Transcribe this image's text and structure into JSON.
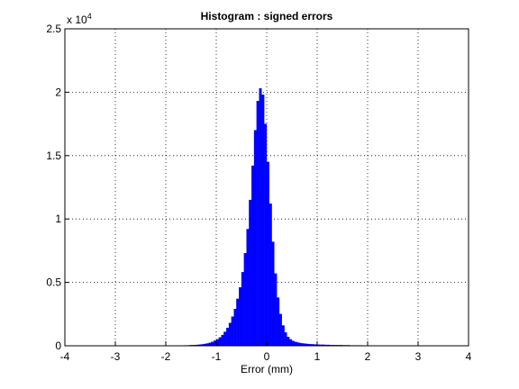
{
  "chart_data": {
    "type": "histogram",
    "title": "Histogram : signed errors",
    "x_label": "Error (mm)",
    "y_multiplier": {
      "base": "x 10",
      "exponent": "4"
    },
    "color": "#0000ff",
    "grid": true,
    "xlim": [
      -4,
      4
    ],
    "xticks": [
      -4,
      -3,
      -2,
      -1,
      0,
      1,
      2,
      3,
      4
    ],
    "ylim": [
      0,
      2.5
    ],
    "yticks": [
      0,
      0.5,
      1,
      1.5,
      2,
      2.5
    ],
    "bins": [
      -1.75,
      -1.7,
      -1.65,
      -1.6,
      -1.55,
      -1.5,
      -1.45,
      -1.4,
      -1.35,
      -1.3,
      -1.25,
      -1.2,
      -1.15,
      -1.1,
      -1.05,
      -1,
      -0.95,
      -0.9,
      -0.85,
      -0.8,
      -0.75,
      -0.7,
      -0.65,
      -0.6,
      -0.55,
      -0.5,
      -0.45,
      -0.4,
      -0.35,
      -0.3,
      -0.25,
      -0.2,
      -0.15,
      -0.1,
      -0.05,
      0,
      0.05,
      0.1,
      0.15,
      0.2,
      0.25,
      0.3,
      0.35,
      0.4,
      0.45,
      0.5,
      0.55,
      0.6,
      0.65,
      0.7,
      0.75,
      0.8,
      0.85,
      0.9,
      0.95,
      1,
      1.05,
      1.1,
      1.15,
      1.2,
      1.25,
      1.3,
      1.35,
      1.4,
      1.45,
      1.5,
      1.55,
      1.6,
      1.65,
      1.7,
      1.75,
      1.8,
      1.85,
      1.9,
      1.95,
      2,
      2.05,
      2.1,
      2.15,
      2.2,
      2.25,
      2.3,
      2.35,
      2.4,
      2.45,
      2.5,
      2.55,
      2.6,
      2.65,
      2.7,
      2.75
    ],
    "counts": [
      0.002,
      0.002,
      0.003,
      0.003,
      0.004,
      0.005,
      0.006,
      0.007,
      0.009,
      0.011,
      0.014,
      0.018,
      0.023,
      0.03,
      0.04,
      0.05,
      0.065,
      0.085,
      0.11,
      0.14,
      0.18,
      0.23,
      0.29,
      0.37,
      0.46,
      0.58,
      0.73,
      0.92,
      1.15,
      1.42,
      1.7,
      1.93,
      2.03,
      1.98,
      1.75,
      1.45,
      1.12,
      0.82,
      0.57,
      0.38,
      0.25,
      0.16,
      0.105,
      0.07,
      0.05,
      0.038,
      0.03,
      0.025,
      0.021,
      0.018,
      0.016,
      0.014,
      0.012,
      0.011,
      0.01,
      0.009,
      0.008,
      0.008,
      0.007,
      0.007,
      0.006,
      0.006,
      0.005,
      0.005,
      0.005,
      0.004,
      0.004,
      0.004,
      0.003,
      0.003,
      0.003,
      0.003,
      0.003,
      0.002,
      0.002,
      0.002,
      0.002,
      0.002,
      0.002,
      0.002,
      0.002,
      0.001,
      0.001,
      0.001,
      0.001,
      0.001,
      0.001,
      0.001,
      0.001,
      0.001
    ]
  }
}
